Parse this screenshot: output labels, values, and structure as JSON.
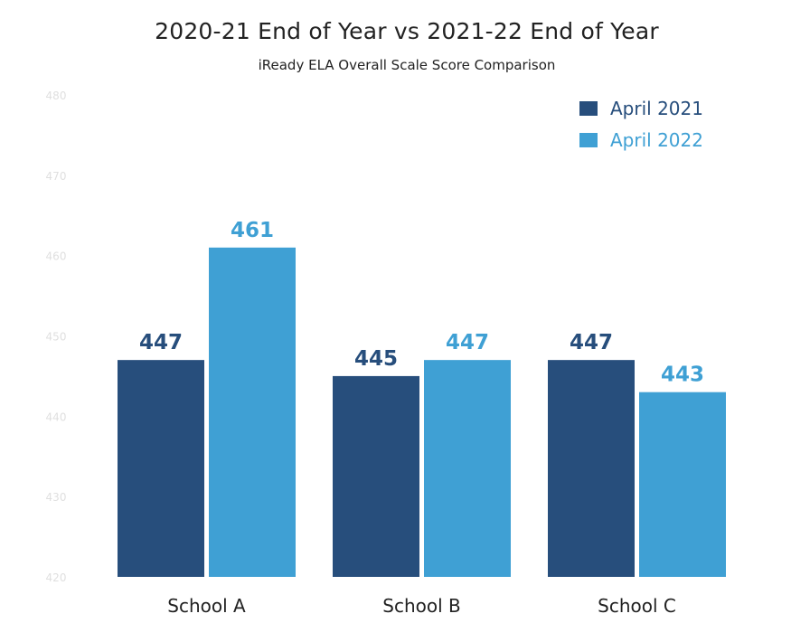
{
  "chart_data": {
    "type": "bar",
    "title": "2020-21 End of Year vs 2021-22 End of Year",
    "subtitle": "iReady ELA Overall Scale Score Comparison",
    "categories": [
      "School A",
      "School B",
      "School C"
    ],
    "series": [
      {
        "name": "April 2021",
        "values": [
          447,
          445,
          447
        ],
        "color": "#274e7c"
      },
      {
        "name": "April 2022",
        "values": [
          461,
          447,
          443
        ],
        "color": "#3fa0d4"
      }
    ],
    "ylim": [
      420,
      480
    ],
    "yticks": [
      "420",
      "430",
      "440",
      "450",
      "460",
      "470",
      "480"
    ],
    "legend_position": "top-right",
    "grid": false
  }
}
